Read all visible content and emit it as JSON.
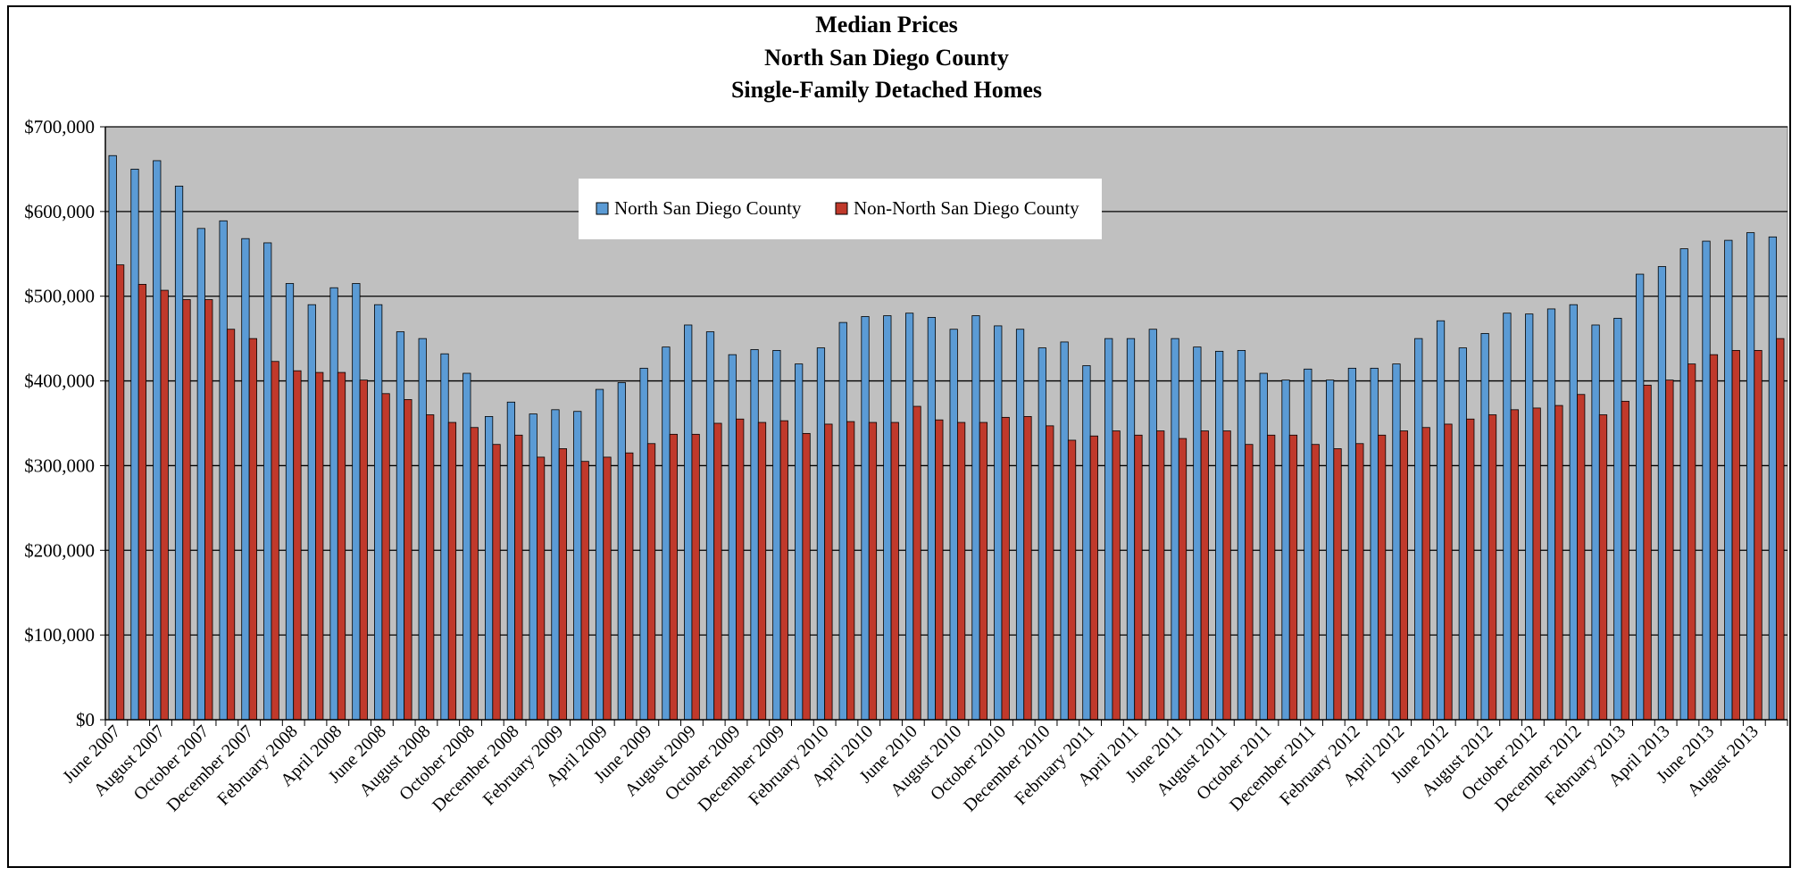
{
  "chart_data": {
    "type": "bar",
    "title": [
      "Median Prices",
      "North San Diego County",
      "Single-Family Detached Homes"
    ],
    "xlabel": "",
    "ylabel": "",
    "ylim": [
      0,
      700000
    ],
    "y_ticks": [
      "$0",
      "$100,000",
      "$200,000",
      "$300,000",
      "$400,000",
      "$500,000",
      "$600,000",
      "$700,000"
    ],
    "y_tick_values": [
      0,
      100000,
      200000,
      300000,
      400000,
      500000,
      600000,
      700000
    ],
    "grid": true,
    "legend_position": "top-center",
    "plot_background": "#c0c0c0",
    "categories": [
      "June 2007",
      "July 2007",
      "August 2007",
      "September 2007",
      "October 2007",
      "November 2007",
      "December 2007",
      "January 2008",
      "February 2008",
      "March 2008",
      "April 2008",
      "May 2008",
      "June 2008",
      "July 2008",
      "August 2008",
      "September 2008",
      "October 2008",
      "November 2008",
      "December 2008",
      "January 2009",
      "February 2009",
      "March 2009",
      "April 2009",
      "May 2009",
      "June 2009",
      "July 2009",
      "August 2009",
      "September 2009",
      "October 2009",
      "November 2009",
      "December 2009",
      "January 2010",
      "February 2010",
      "March 2010",
      "April 2010",
      "May 2010",
      "June 2010",
      "July 2010",
      "August 2010",
      "September 2010",
      "October 2010",
      "November 2010",
      "December 2010",
      "January 2011",
      "February 2011",
      "March 2011",
      "April 2011",
      "May 2011",
      "June 2011",
      "July 2011",
      "August 2011",
      "September 2011",
      "October 2011",
      "November 2011",
      "December 2011",
      "January 2012",
      "February 2012",
      "March 2012",
      "April 2012",
      "May 2012",
      "June 2012",
      "July 2012",
      "August 2012",
      "September 2012",
      "October 2012",
      "November 2012",
      "December 2012",
      "January 2013",
      "February 2013",
      "March 2013",
      "April 2013",
      "May 2013",
      "June 2013",
      "July 2013",
      "August 2013",
      "September 2013"
    ],
    "x_tick_labels": [
      "June 2007",
      "August 2007",
      "October 2007",
      "December 2007",
      "February 2008",
      "April 2008",
      "June 2008",
      "August 2008",
      "October 2008",
      "December 2008",
      "February 2009",
      "April 2009",
      "June 2009",
      "August 2009",
      "October 2009",
      "December 2009",
      "February 2010",
      "April 2010",
      "June 2010",
      "August 2010",
      "October 2010",
      "December 2010",
      "February 2011",
      "April 2011",
      "June 2011",
      "August 2011",
      "October 2011",
      "December 2011",
      "February 2012",
      "April 2012",
      "June 2012",
      "August 2012",
      "October 2012",
      "December 2012",
      "February 2013",
      "April 2013",
      "June 2013",
      "August 2013"
    ],
    "series": [
      {
        "name": "North San Diego County",
        "color": "#5b9bd5",
        "values": [
          666000,
          650000,
          660000,
          630000,
          580000,
          589000,
          568000,
          563000,
          515000,
          490000,
          510000,
          515000,
          490000,
          458000,
          450000,
          432000,
          409000,
          358000,
          375000,
          361000,
          366000,
          364000,
          390000,
          398000,
          415000,
          440000,
          466000,
          458000,
          431000,
          437000,
          436000,
          420000,
          439000,
          469000,
          476000,
          477000,
          480000,
          475000,
          461000,
          477000,
          465000,
          461000,
          439000,
          446000,
          418000,
          450000,
          450000,
          461000,
          450000,
          440000,
          435000,
          436000,
          409000,
          401000,
          414000,
          401000,
          415000,
          415000,
          420000,
          450000,
          471000,
          439000,
          456000,
          480000,
          479000,
          485000,
          490000,
          466000,
          474000,
          526000,
          535000,
          556000,
          565000,
          566000,
          575000,
          570000
        ]
      },
      {
        "name": "Non-North San Diego County",
        "color": "#c0392b",
        "values": [
          537000,
          514000,
          507000,
          496000,
          496000,
          461000,
          450000,
          423000,
          412000,
          410000,
          410000,
          401000,
          385000,
          378000,
          360000,
          351000,
          345000,
          325000,
          336000,
          310000,
          320000,
          305000,
          310000,
          315000,
          326000,
          337000,
          337000,
          350000,
          355000,
          351000,
          353000,
          338000,
          349000,
          352000,
          351000,
          351000,
          370000,
          354000,
          351000,
          351000,
          357000,
          358000,
          347000,
          330000,
          335000,
          341000,
          336000,
          341000,
          332000,
          341000,
          341000,
          325000,
          336000,
          336000,
          325000,
          320000,
          326000,
          336000,
          341000,
          345000,
          349000,
          355000,
          360000,
          366000,
          368000,
          371000,
          384000,
          360000,
          376000,
          395000,
          401000,
          420000,
          431000,
          436000,
          436000,
          450000
        ]
      }
    ]
  }
}
